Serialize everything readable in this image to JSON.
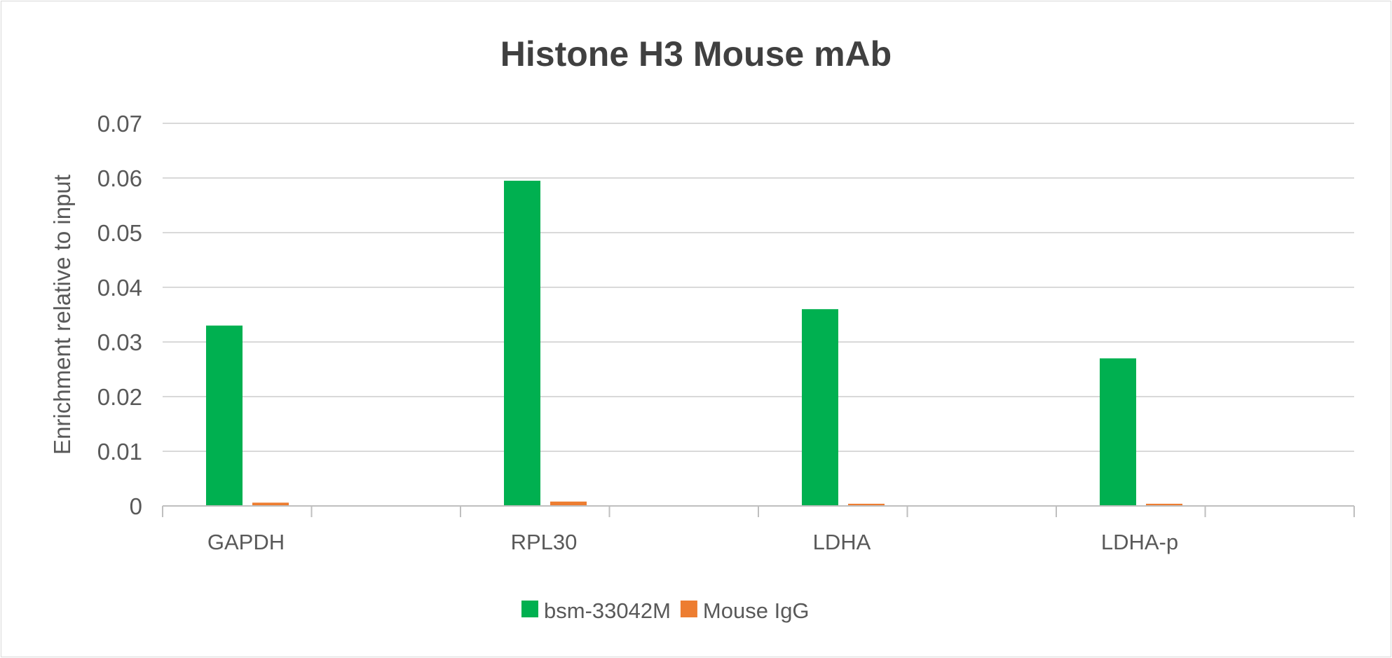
{
  "chart_data": {
    "type": "bar",
    "title": "Histone H3 Mouse  mAb",
    "xlabel": "",
    "ylabel": "Enrichment relative to input",
    "ylim": [
      0,
      0.07
    ],
    "yticks": [
      "0",
      "0.01",
      "0.02",
      "0.03",
      "0.04",
      "0.05",
      "0.06",
      "0.07"
    ],
    "grid": true,
    "legend_position": "bottom",
    "categories": [
      "GAPDH",
      "RPL30",
      "LDHA",
      "LDHA-p"
    ],
    "series": [
      {
        "name": "bsm-33042M",
        "color": "#00b050",
        "values": [
          0.033,
          0.0595,
          0.036,
          0.027
        ]
      },
      {
        "name": "Mouse IgG",
        "color": "#ed7d31",
        "values": [
          0.0006,
          0.0008,
          0.0004,
          0.0004
        ]
      }
    ]
  }
}
